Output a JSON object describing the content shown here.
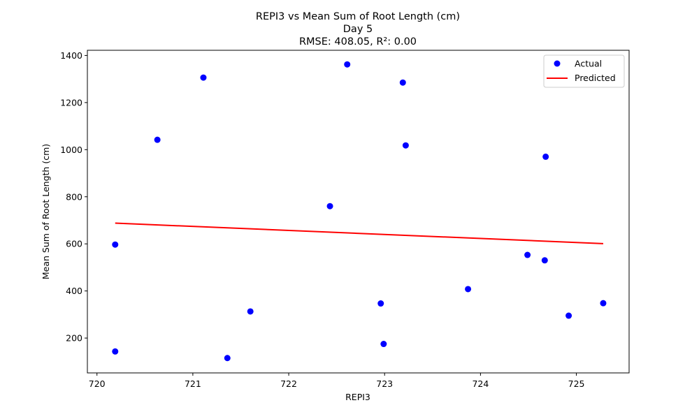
{
  "chart_data": {
    "type": "scatter",
    "title": {
      "line1": "REPI3 vs Mean Sum of Root Length (cm)",
      "line2": "Day 5",
      "line3": "RMSE: 408.05, R²: 0.00"
    },
    "xlabel": "REPI3",
    "ylabel": "Mean Sum of Root Length (cm)",
    "xlim": [
      719.9,
      725.55
    ],
    "ylim": [
      52,
      1422
    ],
    "xticks": [
      720,
      721,
      722,
      723,
      724,
      725
    ],
    "xtick_labels": [
      "720",
      "721",
      "722",
      "723",
      "724",
      "725"
    ],
    "yticks": [
      200,
      400,
      600,
      800,
      1000,
      1200,
      1400
    ],
    "ytick_labels": [
      "200",
      "400",
      "600",
      "800",
      "1000",
      "1200",
      "1400"
    ],
    "legend_position": "top-right",
    "grid": false,
    "series": [
      {
        "name": "Actual",
        "kind": "scatter",
        "color": "#0000ff",
        "points": [
          [
            720.19,
            597
          ],
          [
            720.19,
            143
          ],
          [
            720.63,
            1042
          ],
          [
            721.11,
            1306
          ],
          [
            721.36,
            115
          ],
          [
            721.6,
            313
          ],
          [
            722.43,
            760
          ],
          [
            722.61,
            1362
          ],
          [
            722.96,
            347
          ],
          [
            722.99,
            175
          ],
          [
            723.19,
            1285
          ],
          [
            723.22,
            1018
          ],
          [
            723.87,
            408
          ],
          [
            724.49,
            553
          ],
          [
            724.67,
            530
          ],
          [
            724.68,
            970
          ],
          [
            724.92,
            295
          ],
          [
            725.28,
            348
          ]
        ]
      },
      {
        "name": "Predicted",
        "kind": "line",
        "color": "#ff0000",
        "points": [
          [
            720.19,
            688
          ],
          [
            725.28,
            601
          ]
        ]
      }
    ]
  }
}
